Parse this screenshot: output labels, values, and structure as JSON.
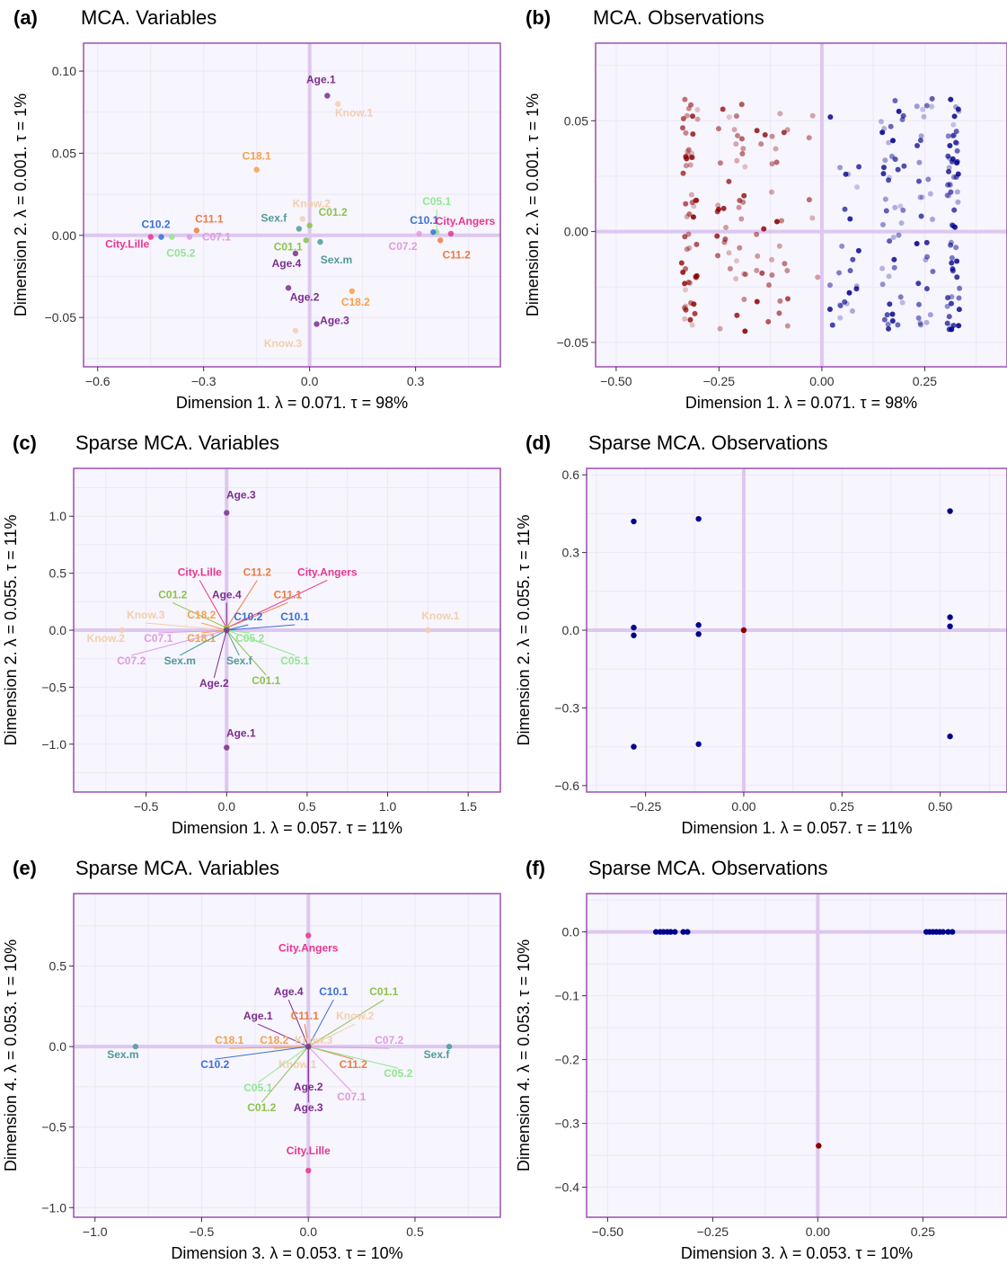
{
  "colors": {
    "panel_bg": "#f7f5fd",
    "panel_border": "#9b4fb5",
    "grid": "#ece8f6",
    "zero_line": "#ddc8ef",
    "obs_red": "#8b0000",
    "obs_blue": "#00008b"
  },
  "chart_data": [
    {
      "id": "a",
      "type": "scatter",
      "letter": "(a)",
      "title": "MCA. Variables",
      "xlabel": "Dimension 1.   λ = 0.071.  τ = 98%",
      "ylabel": "Dimension 2.   λ = 0.001.  τ = 1%",
      "xlim": [
        -0.64,
        0.54
      ],
      "ylim": [
        -0.08,
        0.117
      ],
      "xticks": [
        -0.6,
        -0.3,
        0.0,
        0.3
      ],
      "xtick_labels": [
        "−0.6",
        "−0.3",
        "0.0",
        "0.3"
      ],
      "yticks": [
        -0.05,
        0.0,
        0.05,
        0.1
      ],
      "ytick_labels": [
        "−0.05",
        "0.00",
        "0.05",
        "0.10"
      ],
      "points": [
        {
          "label": "Age.1",
          "x": 0.05,
          "y": 0.085,
          "color": "#7b2d8e"
        },
        {
          "label": "Know.1",
          "x": 0.08,
          "y": 0.08,
          "color": "#f3cfae"
        },
        {
          "label": "C18.1",
          "x": -0.15,
          "y": 0.04,
          "color": "#f5a04a"
        },
        {
          "label": "Know.2",
          "x": -0.02,
          "y": 0.01,
          "color": "#f3cfae"
        },
        {
          "label": "C05.1",
          "x": 0.36,
          "y": 0.002,
          "color": "#8ee88e"
        },
        {
          "label": "C11.1",
          "x": -0.32,
          "y": 0.003,
          "color": "#f07b3f"
        },
        {
          "label": "Sex.f",
          "x": -0.03,
          "y": 0.004,
          "color": "#4f9a9a"
        },
        {
          "label": "C01.2",
          "x": 0.0,
          "y": 0.006,
          "color": "#8bc34a"
        },
        {
          "label": "C10.1",
          "x": 0.35,
          "y": 0.002,
          "color": "#3a6fd8"
        },
        {
          "label": "City.Angers",
          "x": 0.4,
          "y": 0.001,
          "color": "#e8358f"
        },
        {
          "label": "C10.2",
          "x": -0.42,
          "y": -0.001,
          "color": "#3a6fd8"
        },
        {
          "label": "C07.1",
          "x": -0.34,
          "y": -0.001,
          "color": "#df9be0"
        },
        {
          "label": "C01.1",
          "x": -0.01,
          "y": -0.003,
          "color": "#8bc34a"
        },
        {
          "label": "C07.2",
          "x": 0.31,
          "y": 0.001,
          "color": "#df9be0"
        },
        {
          "label": "City.Lille",
          "x": -0.45,
          "y": -0.001,
          "color": "#e8358f"
        },
        {
          "label": "C05.2",
          "x": -0.39,
          "y": -0.001,
          "color": "#8ee88e"
        },
        {
          "label": "Sex.m",
          "x": 0.03,
          "y": -0.004,
          "color": "#4f9a9a"
        },
        {
          "label": "C11.2",
          "x": 0.37,
          "y": -0.003,
          "color": "#f07b3f"
        },
        {
          "label": "Age.4",
          "x": -0.04,
          "y": -0.011,
          "color": "#7b2d8e"
        },
        {
          "label": "Age.2",
          "x": -0.06,
          "y": -0.032,
          "color": "#7b2d8e"
        },
        {
          "label": "C18.2",
          "x": 0.12,
          "y": -0.034,
          "color": "#f5a04a"
        },
        {
          "label": "Age.3",
          "x": 0.02,
          "y": -0.054,
          "color": "#7b2d8e"
        },
        {
          "label": "Know.3",
          "x": -0.04,
          "y": -0.058,
          "color": "#f3cfae"
        }
      ]
    },
    {
      "id": "b",
      "type": "scatter",
      "letter": "(b)",
      "title": "MCA. Observations",
      "xlabel": "Dimension 1.   λ = 0.071.  τ = 98%",
      "ylabel": "Dimension 2.   λ = 0.001.  τ = 1%",
      "xlim": [
        -0.55,
        0.45
      ],
      "ylim": [
        -0.061,
        0.085
      ],
      "xticks": [
        -0.5,
        -0.25,
        0.0,
        0.25
      ],
      "xtick_labels": [
        "−0.50",
        "−0.25",
        "0.00",
        "0.25"
      ],
      "yticks": [
        -0.05,
        0.0,
        0.05
      ],
      "ytick_labels": [
        "−0.05",
        "0.00",
        "0.05"
      ],
      "observation_cloud": true,
      "seed": 7,
      "cloud_size": 320
    },
    {
      "id": "c",
      "type": "scatter",
      "letter": "(c)",
      "title": "Sparse MCA. Variables",
      "xlabel": "Dimension 1.   λ = 0.057.  τ = 11%",
      "ylabel": "Dimension 2.   λ = 0.055.  τ = 11%",
      "xlim": [
        -0.95,
        1.7
      ],
      "ylim": [
        -1.42,
        1.42
      ],
      "xticks": [
        -0.5,
        0.0,
        0.5,
        1.0,
        1.5
      ],
      "xtick_labels": [
        "−0.5",
        "0.0",
        "0.5",
        "1.0",
        "1.5"
      ],
      "yticks": [
        -1.0,
        -0.5,
        0.0,
        0.5,
        1.0
      ],
      "ytick_labels": [
        "−1.0",
        "−0.5",
        "0.0",
        "0.5",
        "1.0"
      ],
      "points": [
        {
          "label": "Age.3",
          "x": 0.0,
          "y": 1.03,
          "color": "#7b2d8e"
        },
        {
          "label": "Know.1",
          "x": 1.25,
          "y": 0.0,
          "color": "#f3cfae"
        },
        {
          "label": "Know.2",
          "x": -0.65,
          "y": 0.0,
          "color": "#f3cfae"
        },
        {
          "label": "Age.1",
          "x": 0.0,
          "y": -1.03,
          "color": "#7b2d8e"
        },
        {
          "label": "City.Lille",
          "x": 0.0,
          "y": 0.02,
          "color": "#e8358f"
        },
        {
          "label": "C11.2",
          "x": 0.0,
          "y": 0.02,
          "color": "#f07b3f"
        },
        {
          "label": "City.Angers",
          "x": 0.0,
          "y": 0.02,
          "color": "#e8358f"
        },
        {
          "label": "Age.4",
          "x": 0.0,
          "y": 0.02,
          "color": "#7b2d8e"
        },
        {
          "label": "C11.1",
          "x": 0.0,
          "y": 0.02,
          "color": "#f07b3f"
        },
        {
          "label": "C01.2",
          "x": 0.0,
          "y": 0.02,
          "color": "#8bc34a"
        },
        {
          "label": "Know.3",
          "x": 0.0,
          "y": 0.0,
          "color": "#f3cfae"
        },
        {
          "label": "C18.2",
          "x": 0.0,
          "y": 0.0,
          "color": "#f5a04a"
        },
        {
          "label": "C10.2",
          "x": 0.0,
          "y": 0.0,
          "color": "#3a6fd8"
        },
        {
          "label": "C10.1",
          "x": 0.0,
          "y": 0.0,
          "color": "#3a6fd8"
        },
        {
          "label": "C07.1",
          "x": 0.0,
          "y": 0.0,
          "color": "#df9be0"
        },
        {
          "label": "C18.1",
          "x": 0.0,
          "y": 0.0,
          "color": "#f5a04a"
        },
        {
          "label": "C05.2",
          "x": 0.0,
          "y": 0.0,
          "color": "#8ee88e"
        },
        {
          "label": "C07.2",
          "x": 0.0,
          "y": 0.0,
          "color": "#df9be0"
        },
        {
          "label": "Sex.m",
          "x": 0.0,
          "y": 0.0,
          "color": "#4f9a9a"
        },
        {
          "label": "Sex.f",
          "x": 0.0,
          "y": 0.0,
          "color": "#4f9a9a"
        },
        {
          "label": "C05.1",
          "x": 0.0,
          "y": 0.0,
          "color": "#8ee88e"
        },
        {
          "label": "C01.1",
          "x": 0.0,
          "y": 0.0,
          "color": "#8bc34a"
        },
        {
          "label": "Age.2",
          "x": 0.0,
          "y": 0.0,
          "color": "#7b2d8e"
        }
      ]
    },
    {
      "id": "d",
      "type": "scatter",
      "letter": "(d)",
      "title": "Sparse MCA. Observations",
      "xlabel": "Dimension 1.   λ = 0.057.  τ = 11%",
      "ylabel": "Dimension 2.   λ = 0.055.  τ = 11%",
      "xlim": [
        -0.4,
        0.67
      ],
      "ylim": [
        -0.625,
        0.625
      ],
      "xticks": [
        -0.25,
        0.0,
        0.25,
        0.5
      ],
      "xtick_labels": [
        "−0.25",
        "0.00",
        "0.25",
        "0.50"
      ],
      "yticks": [
        -0.6,
        -0.3,
        0.0,
        0.3,
        0.6
      ],
      "ytick_labels": [
        "−0.6",
        "−0.3",
        "0.0",
        "0.3",
        "0.6"
      ],
      "points": [
        {
          "x": -0.28,
          "y": 0.42,
          "color": "#00008b"
        },
        {
          "x": -0.115,
          "y": 0.43,
          "color": "#00008b"
        },
        {
          "x": 0.525,
          "y": 0.46,
          "color": "#00008b"
        },
        {
          "x": -0.28,
          "y": 0.01,
          "color": "#00008b"
        },
        {
          "x": -0.28,
          "y": -0.02,
          "color": "#00008b"
        },
        {
          "x": -0.115,
          "y": 0.02,
          "color": "#00008b"
        },
        {
          "x": -0.115,
          "y": -0.015,
          "color": "#00008b"
        },
        {
          "x": 0.0,
          "y": 0.0,
          "color": "#8b0000"
        },
        {
          "x": 0.525,
          "y": 0.05,
          "color": "#00008b"
        },
        {
          "x": 0.525,
          "y": 0.015,
          "color": "#00008b"
        },
        {
          "x": -0.28,
          "y": -0.45,
          "color": "#00008b"
        },
        {
          "x": -0.115,
          "y": -0.44,
          "color": "#00008b"
        },
        {
          "x": 0.525,
          "y": -0.41,
          "color": "#00008b"
        }
      ]
    },
    {
      "id": "e",
      "type": "scatter",
      "letter": "(e)",
      "title": "Sparse MCA. Variables",
      "xlabel": "Dimension 3.   λ = 0.053.  τ = 10%",
      "ylabel": "Dimension 4.   λ = 0.053.  τ = 10%",
      "xlim": [
        -1.1,
        0.9
      ],
      "ylim": [
        -1.06,
        0.95
      ],
      "xticks": [
        -1.0,
        -0.5,
        0.0,
        0.5
      ],
      "xtick_labels": [
        "−1.0",
        "−0.5",
        "0.0",
        "0.5"
      ],
      "yticks": [
        -1.0,
        -0.5,
        0.0,
        0.5
      ],
      "ytick_labels": [
        "−1.0",
        "−0.5",
        "0.0",
        "0.5"
      ],
      "points": [
        {
          "label": "City.Angers",
          "x": 0.0,
          "y": 0.69,
          "color": "#e8358f"
        },
        {
          "label": "Sex.m",
          "x": -0.81,
          "y": 0.0,
          "color": "#4f9a9a"
        },
        {
          "label": "Sex.f",
          "x": 0.66,
          "y": 0.0,
          "color": "#4f9a9a"
        },
        {
          "label": "City.Lille",
          "x": 0.0,
          "y": -0.77,
          "color": "#e8358f"
        },
        {
          "label": "Age.4",
          "x": 0.0,
          "y": 0.0,
          "color": "#7b2d8e"
        },
        {
          "label": "C10.1",
          "x": 0.0,
          "y": 0.0,
          "color": "#3a6fd8"
        },
        {
          "label": "C01.1",
          "x": 0.0,
          "y": 0.0,
          "color": "#8bc34a"
        },
        {
          "label": "Age.1",
          "x": 0.0,
          "y": 0.0,
          "color": "#7b2d8e"
        },
        {
          "label": "C11.1",
          "x": 0.0,
          "y": 0.0,
          "color": "#f07b3f"
        },
        {
          "label": "Know.2",
          "x": 0.0,
          "y": 0.0,
          "color": "#f3cfae"
        },
        {
          "label": "C18.1",
          "x": 0.0,
          "y": 0.0,
          "color": "#f5a04a"
        },
        {
          "label": "C18.2",
          "x": 0.0,
          "y": 0.0,
          "color": "#f5a04a"
        },
        {
          "label": "Know.3",
          "x": 0.0,
          "y": 0.0,
          "color": "#f3cfae"
        },
        {
          "label": "C07.2",
          "x": 0.0,
          "y": 0.0,
          "color": "#df9be0"
        },
        {
          "label": "C10.2",
          "x": 0.0,
          "y": 0.0,
          "color": "#3a6fd8"
        },
        {
          "label": "Know.1",
          "x": 0.0,
          "y": 0.0,
          "color": "#f3cfae"
        },
        {
          "label": "C11.2",
          "x": 0.0,
          "y": 0.0,
          "color": "#f07b3f"
        },
        {
          "label": "C05.2",
          "x": 0.0,
          "y": 0.0,
          "color": "#8ee88e"
        },
        {
          "label": "C05.1",
          "x": 0.0,
          "y": 0.0,
          "color": "#8ee88e"
        },
        {
          "label": "Age.2",
          "x": 0.0,
          "y": 0.0,
          "color": "#7b2d8e"
        },
        {
          "label": "C07.1",
          "x": 0.0,
          "y": 0.0,
          "color": "#df9be0"
        },
        {
          "label": "C01.2",
          "x": 0.0,
          "y": 0.0,
          "color": "#8bc34a"
        },
        {
          "label": "Age.3",
          "x": 0.0,
          "y": 0.0,
          "color": "#7b2d8e"
        }
      ]
    },
    {
      "id": "f",
      "type": "scatter",
      "letter": "(f)",
      "title": "Sparse MCA. Observations",
      "xlabel": "Dimension 3.   λ = 0.053.  τ = 10%",
      "ylabel": "Dimension 4.   λ = 0.053.  τ = 10%",
      "xlim": [
        -0.55,
        0.45
      ],
      "ylim": [
        -0.447,
        0.06
      ],
      "xticks": [
        -0.5,
        -0.25,
        0.0,
        0.25
      ],
      "xtick_labels": [
        "−0.50",
        "−0.25",
        "0.00",
        "0.25"
      ],
      "yticks": [
        -0.4,
        -0.3,
        -0.2,
        -0.1,
        0.0
      ],
      "ytick_labels": [
        "−0.4",
        "−0.3",
        "−0.2",
        "−0.1",
        "0.0"
      ],
      "points": [
        {
          "x": -0.385,
          "y": 0.0,
          "color": "#00008b"
        },
        {
          "x": -0.375,
          "y": 0.0,
          "color": "#00008b"
        },
        {
          "x": -0.367,
          "y": 0.0,
          "color": "#00008b"
        },
        {
          "x": -0.358,
          "y": 0.0,
          "color": "#00008b"
        },
        {
          "x": -0.35,
          "y": 0.0,
          "color": "#00008b"
        },
        {
          "x": -0.34,
          "y": 0.0,
          "color": "#00008b"
        },
        {
          "x": -0.32,
          "y": 0.0,
          "color": "#00008b"
        },
        {
          "x": -0.31,
          "y": 0.0,
          "color": "#00008b"
        },
        {
          "x": 0.258,
          "y": 0.0,
          "color": "#00008b"
        },
        {
          "x": 0.266,
          "y": 0.0,
          "color": "#00008b"
        },
        {
          "x": 0.274,
          "y": 0.0,
          "color": "#00008b"
        },
        {
          "x": 0.282,
          "y": 0.0,
          "color": "#00008b"
        },
        {
          "x": 0.29,
          "y": 0.0,
          "color": "#00008b"
        },
        {
          "x": 0.298,
          "y": 0.0,
          "color": "#00008b"
        },
        {
          "x": 0.31,
          "y": 0.0,
          "color": "#00008b"
        },
        {
          "x": 0.32,
          "y": 0.0,
          "color": "#00008b"
        },
        {
          "x": 0.002,
          "y": -0.335,
          "color": "#8b0000"
        }
      ]
    }
  ]
}
